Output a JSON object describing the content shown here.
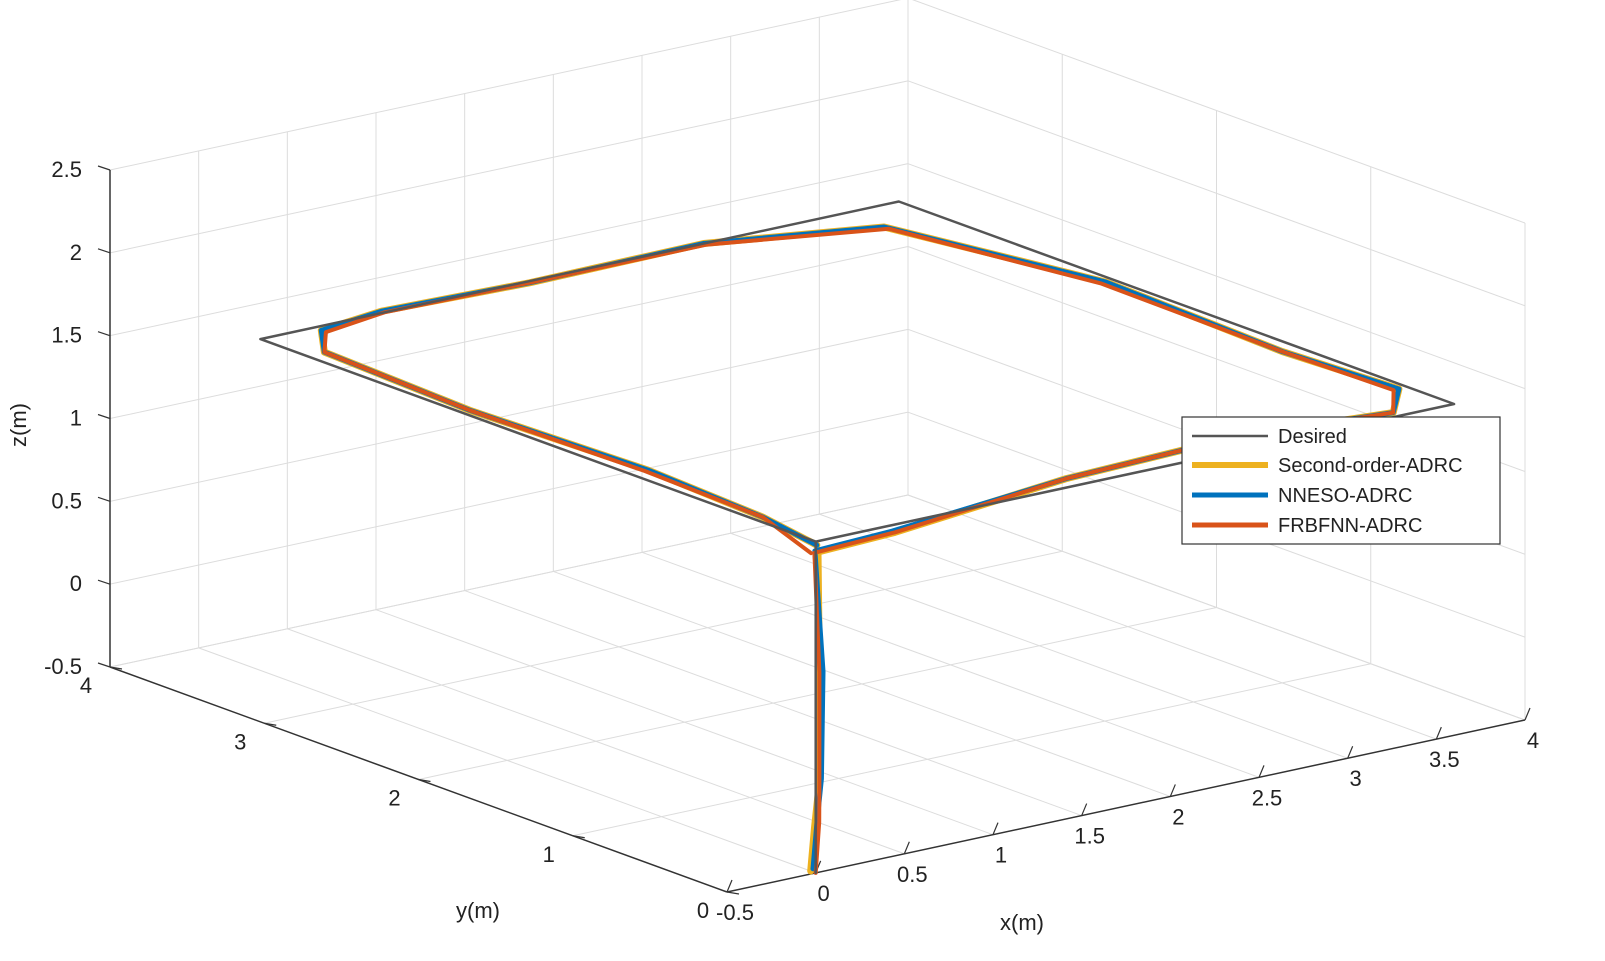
{
  "chart_data": {
    "type": "line3d",
    "title": "",
    "xlabel": "x(m)",
    "ylabel": "y(m)",
    "zlabel": "z(m)",
    "xlim": [
      -0.5,
      4
    ],
    "ylim": [
      0,
      4
    ],
    "zlim": [
      -0.5,
      2.5
    ],
    "x_ticks": [
      "-0.5",
      "0",
      "0.5",
      "1",
      "1.5",
      "2",
      "2.5",
      "3",
      "3.5",
      "4"
    ],
    "y_ticks": [
      "0",
      "1",
      "2",
      "3",
      "4"
    ],
    "z_ticks": [
      "-0.5",
      "0",
      "0.5",
      "1",
      "1.5",
      "2",
      "2.5"
    ],
    "x_tick_values": [
      -0.5,
      0,
      0.5,
      1,
      1.5,
      2,
      2.5,
      3,
      3.5,
      4
    ],
    "y_tick_values": [
      0,
      1,
      2,
      3,
      4
    ],
    "z_tick_values": [
      -0.5,
      0,
      0.5,
      1,
      1.5,
      2,
      2.5
    ],
    "grid": true,
    "legend_position": "right",
    "series": [
      {
        "name": "Desired",
        "color": "#555555",
        "x": [
          0,
          0,
          3.6,
          3.6,
          0,
          0
        ],
        "y": [
          0,
          0,
          0,
          3.6,
          3.6,
          0
        ],
        "z": [
          -0.5,
          1.5,
          1.5,
          1.5,
          1.5,
          1.5
        ]
      },
      {
        "name": "Second-order-ADRC",
        "color": "#EDB120",
        "x": [
          -0.08,
          -0.05,
          0.04,
          0.03,
          0.1,
          0.5,
          1.5,
          2.5,
          3.3,
          3.55,
          3.5,
          3.55,
          3.3,
          2.5,
          1.5,
          0.7,
          0.3,
          0.1,
          0.05,
          0.1,
          0.05,
          0.05
        ],
        "y": [
          -0.06,
          -0.05,
          0.02,
          0.01,
          0.1,
          0.06,
          0.1,
          0.12,
          0.05,
          0.3,
          1.0,
          2.2,
          3.35,
          3.6,
          3.58,
          3.62,
          3.55,
          3.3,
          2.3,
          1.2,
          0.4,
          0.05
        ],
        "z": [
          -0.45,
          -0.2,
          0.05,
          0.7,
          1.38,
          1.42,
          1.5,
          1.52,
          1.5,
          1.5,
          1.5,
          1.5,
          1.5,
          1.5,
          1.5,
          1.5,
          1.5,
          1.5,
          1.5,
          1.5,
          1.5,
          1.45
        ]
      },
      {
        "name": "NNESO-ADRC",
        "color": "#0072BD",
        "x": [
          -0.05,
          -0.02,
          0.05,
          0.05,
          0.1,
          0.5,
          1.5,
          2.5,
          3.3,
          3.55,
          3.5,
          3.55,
          3.3,
          2.5,
          1.5,
          0.7,
          0.3,
          0.1,
          0.05,
          0.1,
          0.05,
          0.05
        ],
        "y": [
          -0.04,
          -0.03,
          0.02,
          0.01,
          0.12,
          0.08,
          0.1,
          0.12,
          0.05,
          0.3,
          1.0,
          2.2,
          3.35,
          3.6,
          3.58,
          3.62,
          3.55,
          3.3,
          2.3,
          1.2,
          0.4,
          0.05
        ],
        "z": [
          -0.45,
          -0.2,
          0.05,
          0.7,
          1.38,
          1.42,
          1.5,
          1.52,
          1.5,
          1.5,
          1.5,
          1.5,
          1.5,
          1.5,
          1.5,
          1.5,
          1.5,
          1.5,
          1.5,
          1.5,
          1.5,
          1.45
        ]
      },
      {
        "name": "FRBFNN-ADRC",
        "color": "#D95319",
        "x": [
          0,
          0.02,
          0.03,
          0.03,
          0.08,
          0.5,
          1.5,
          2.5,
          3.3,
          3.52,
          3.5,
          3.52,
          3.3,
          2.5,
          1.5,
          0.7,
          0.3,
          0.1,
          0.05,
          0.08,
          0.05,
          0.0
        ],
        "y": [
          0,
          0.0,
          0.01,
          0.01,
          0.1,
          0.06,
          0.1,
          0.12,
          0.05,
          0.3,
          1.0,
          2.2,
          3.32,
          3.58,
          3.58,
          3.6,
          3.52,
          3.3,
          2.3,
          1.2,
          0.4,
          0.03
        ],
        "z": [
          -0.5,
          -0.2,
          0.05,
          0.7,
          1.38,
          1.42,
          1.5,
          1.52,
          1.5,
          1.5,
          1.5,
          1.5,
          1.5,
          1.5,
          1.5,
          1.5,
          1.5,
          1.5,
          1.5,
          1.5,
          1.5,
          1.42
        ]
      }
    ]
  }
}
